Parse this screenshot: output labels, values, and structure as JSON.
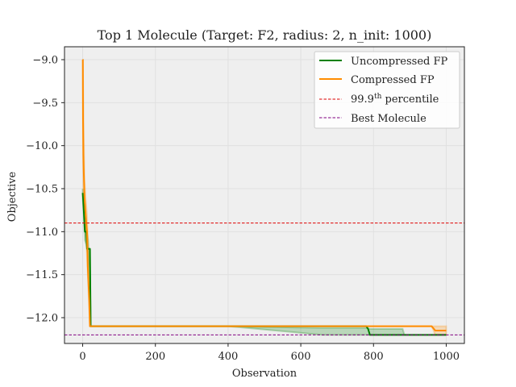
{
  "chart_data": {
    "type": "line",
    "title": "Top 1 Molecule (Target: F2, radius: 2, n_init: 1000)",
    "xlabel": "Observation",
    "ylabel": "Objective",
    "xlim": [
      -50,
      1050
    ],
    "ylim": [
      -12.3,
      -8.85
    ],
    "xticks": [
      0,
      200,
      400,
      600,
      800,
      1000
    ],
    "yticks": [
      -9.0,
      -9.5,
      -10.0,
      -10.5,
      -11.0,
      -11.5,
      -12.0
    ],
    "ytick_labels": [
      "−9.0",
      "−9.5",
      "−10.0",
      "−10.5",
      "−11.0",
      "−11.5",
      "−12.0"
    ],
    "grid": true,
    "legend_position": "top-right",
    "series": [
      {
        "name": "Uncompressed FP",
        "color": "#008000",
        "x": [
          0,
          1,
          3,
          6,
          10,
          12,
          18,
          20,
          22,
          25,
          100,
          400,
          600,
          780,
          785,
          790,
          800,
          900,
          1000
        ],
        "y": [
          -10.55,
          -10.6,
          -10.75,
          -11.0,
          -11.0,
          -11.2,
          -11.2,
          -11.2,
          -12.1,
          -12.1,
          -12.1,
          -12.1,
          -12.1,
          -12.1,
          -12.13,
          -12.2,
          -12.2,
          -12.2,
          -12.2
        ],
        "band_x": [
          0,
          3,
          6,
          10,
          15,
          20,
          22,
          25,
          100,
          400,
          660,
          720,
          780,
          790,
          880,
          885,
          1000
        ],
        "band_low": [
          -10.6,
          -10.8,
          -11.1,
          -11.15,
          -11.3,
          -11.55,
          -12.1,
          -12.1,
          -12.1,
          -12.1,
          -12.2,
          -12.2,
          -12.2,
          -12.2,
          -12.2,
          -12.2,
          -12.2
        ],
        "band_high": [
          -10.5,
          -10.65,
          -10.9,
          -10.95,
          -11.1,
          -11.45,
          -12.1,
          -12.1,
          -12.1,
          -12.1,
          -12.12,
          -12.12,
          -12.12,
          -12.13,
          -12.13,
          -12.2,
          -12.2
        ]
      },
      {
        "name": "Compressed FP",
        "color": "#ff8c00",
        "x": [
          0,
          0.5,
          1,
          2,
          3,
          5,
          8,
          10,
          12,
          14,
          16,
          18,
          20,
          22,
          25,
          100,
          400,
          600,
          800,
          960,
          970,
          980,
          1000
        ],
        "y": [
          -9.0,
          -9.0,
          -9.7,
          -10.1,
          -10.3,
          -10.6,
          -10.8,
          -10.9,
          -11.0,
          -11.4,
          -11.6,
          -11.8,
          -12.1,
          -12.1,
          -12.1,
          -12.1,
          -12.1,
          -12.1,
          -12.1,
          -12.1,
          -12.15,
          -12.15,
          -12.15
        ],
        "band_x": [
          0,
          1,
          3,
          5,
          8,
          10,
          12,
          15,
          18,
          20,
          22,
          25,
          100,
          400,
          800,
          960,
          970,
          1000
        ],
        "band_low": [
          -9.0,
          -10.2,
          -10.7,
          -10.8,
          -11.0,
          -11.1,
          -11.3,
          -11.6,
          -11.9,
          -12.1,
          -12.1,
          -12.1,
          -12.1,
          -12.1,
          -12.1,
          -12.1,
          -12.2,
          -12.2
        ],
        "band_high": [
          -9.0,
          -9.2,
          -9.9,
          -10.4,
          -10.6,
          -10.7,
          -10.8,
          -11.2,
          -11.7,
          -12.1,
          -12.1,
          -12.1,
          -12.1,
          -12.1,
          -12.1,
          -12.1,
          -12.1,
          -12.1
        ]
      }
    ],
    "reference_lines": [
      {
        "name": "99.9th percentile",
        "label_base": "99.9",
        "label_sup": "th",
        "label_rest": " percentile",
        "y": -10.9,
        "color": "#dd0000",
        "dash": "dashed"
      },
      {
        "name": "Best Molecule",
        "y": -12.2,
        "color": "#800080",
        "dash": "dashed"
      }
    ]
  }
}
